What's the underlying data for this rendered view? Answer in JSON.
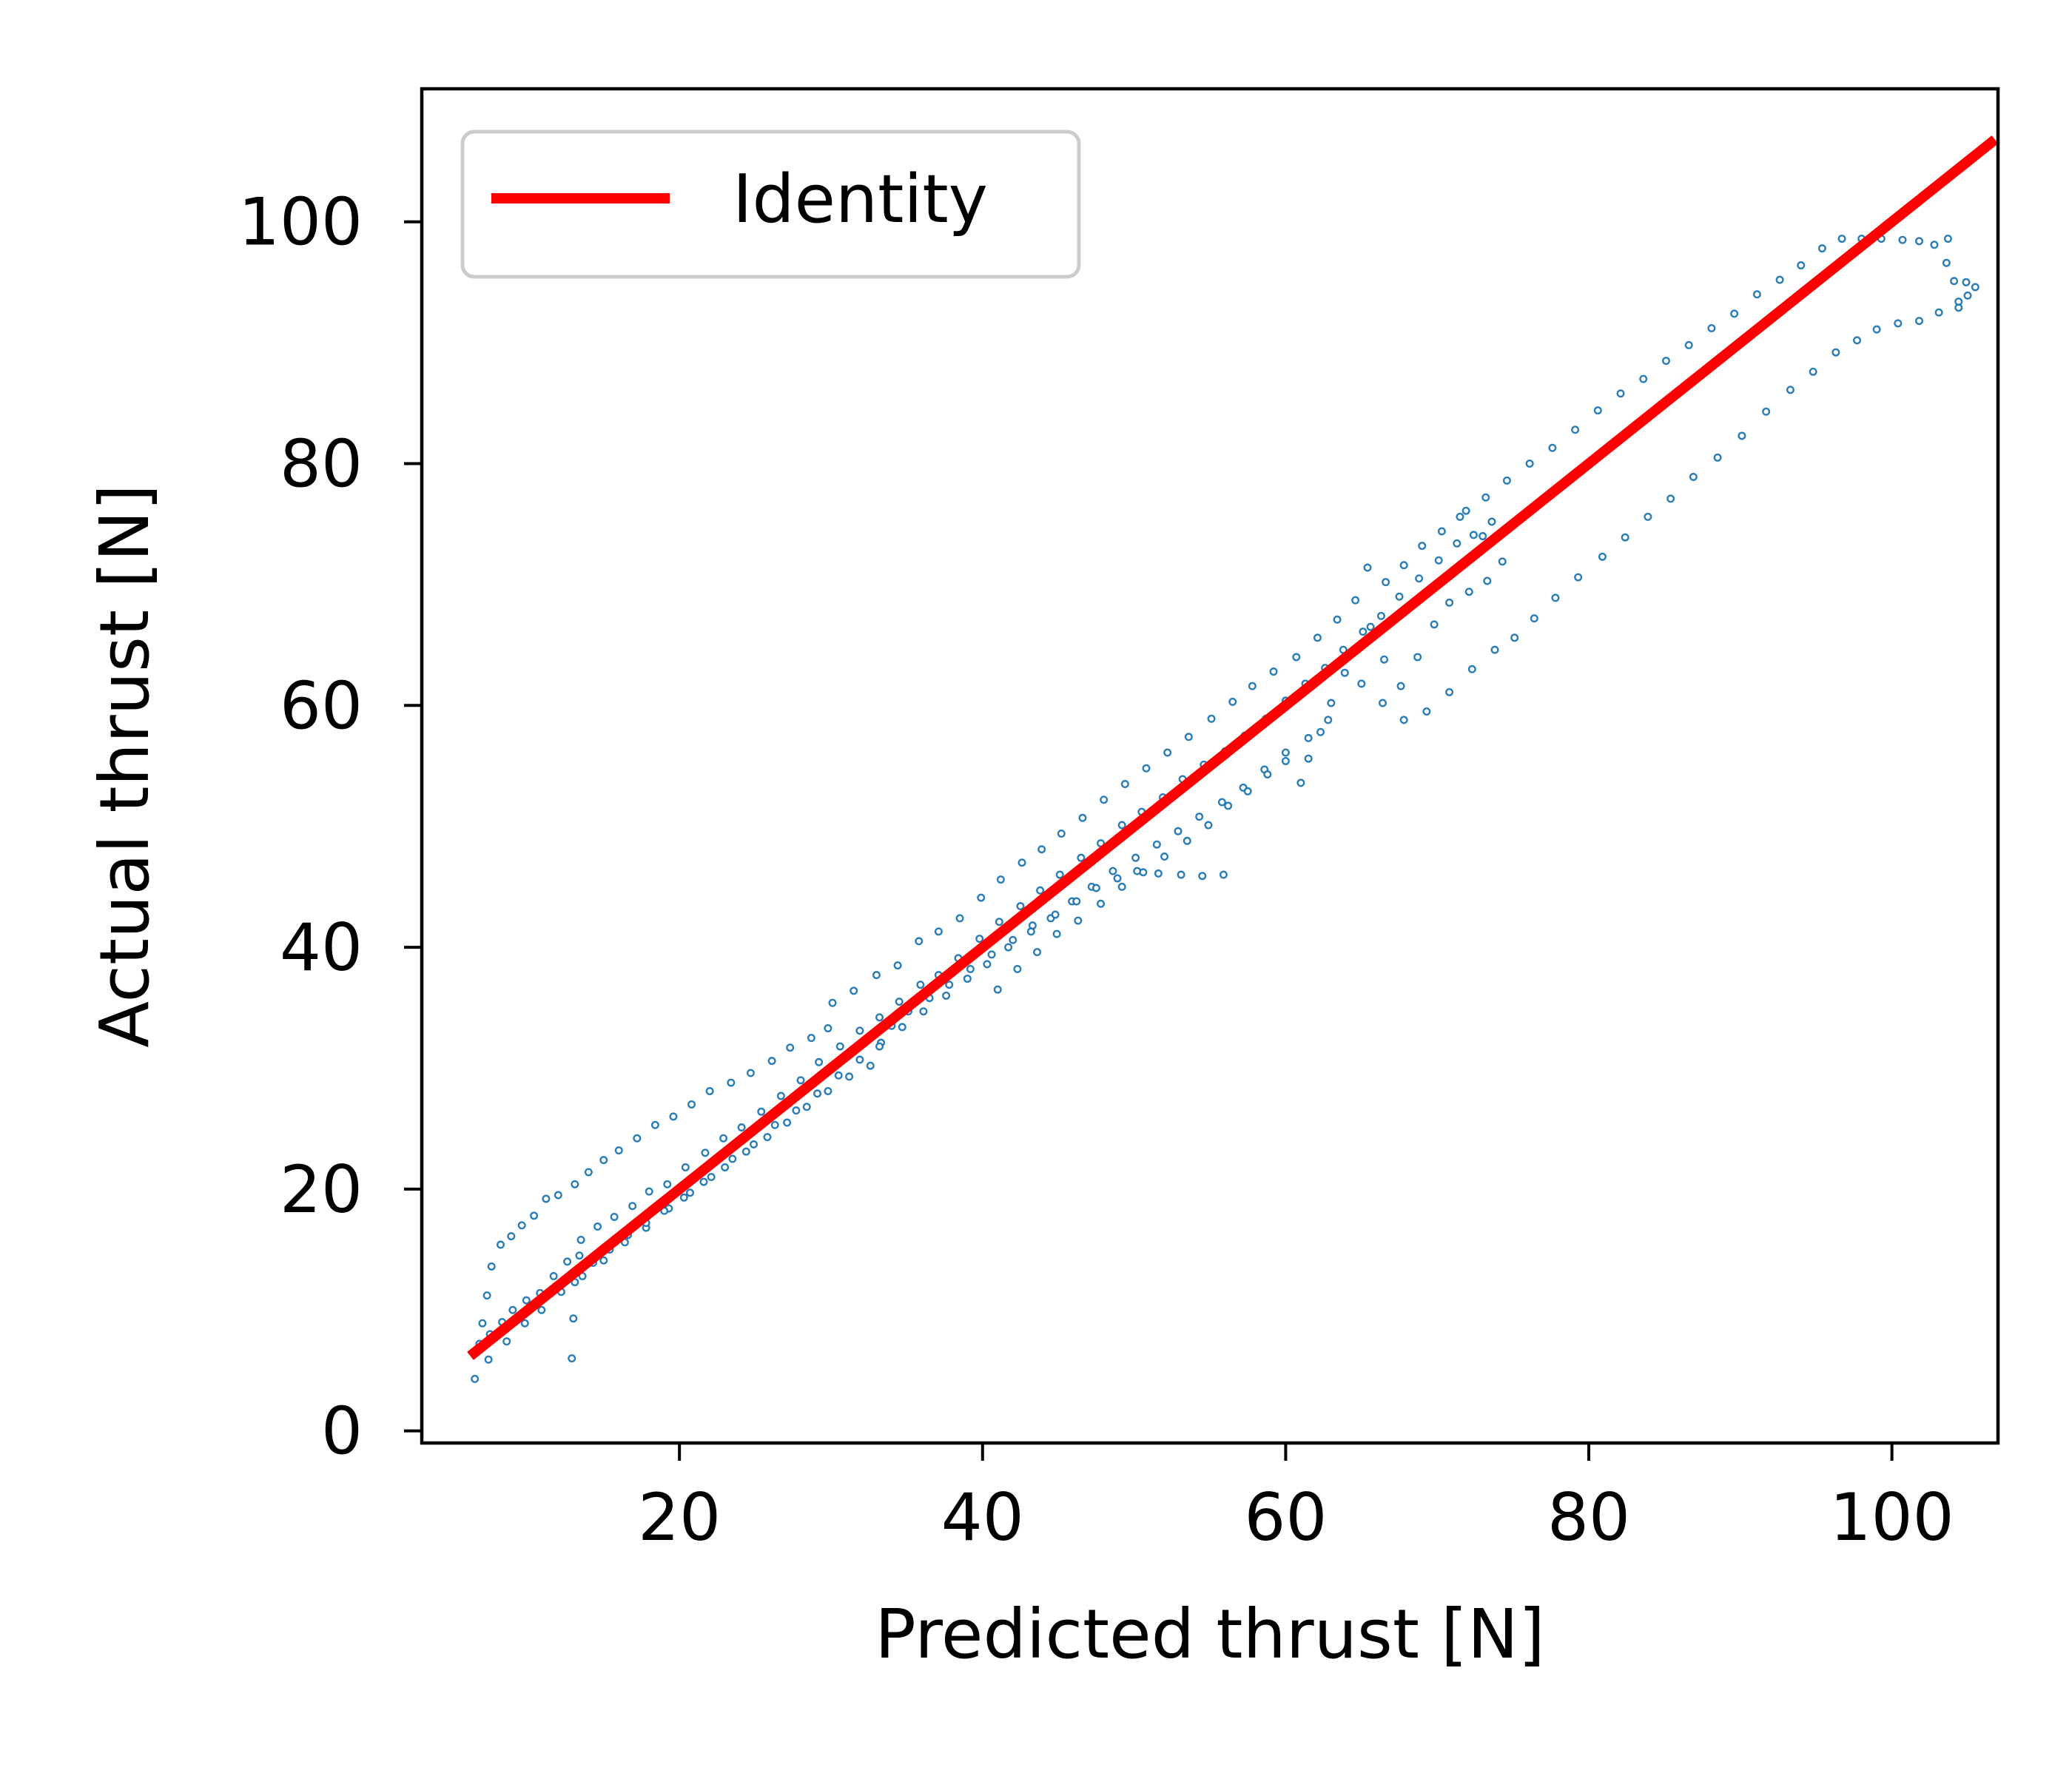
{
  "chart_data": {
    "type": "scatter",
    "title": "",
    "xlabel": "Predicted thrust [N]",
    "ylabel": "Actual thrust [N]",
    "xlim": [
      3,
      107
    ],
    "ylim": [
      -1,
      111
    ],
    "x_ticks": [
      20,
      40,
      60,
      80,
      100
    ],
    "y_ticks": [
      0,
      20,
      40,
      60,
      80,
      100
    ],
    "grid": false,
    "legend": {
      "position": "top-left",
      "entries": [
        {
          "label": "Identity",
          "color": "#ff0000",
          "style": "line"
        }
      ]
    },
    "series": [
      {
        "type": "scatter",
        "color": "#1f77b4",
        "marker": "small hollow circle",
        "points": [
          [
            6.5,
            4.3
          ],
          [
            6.7,
            6.8
          ],
          [
            7.0,
            8.9
          ],
          [
            7.3,
            11.2
          ],
          [
            7.6,
            13.6
          ],
          [
            8.2,
            15.4
          ],
          [
            8.9,
            16.1
          ],
          [
            9.6,
            17.0
          ],
          [
            10.4,
            17.8
          ],
          [
            11.2,
            19.2
          ],
          [
            12.0,
            19.5
          ],
          [
            13.1,
            20.4
          ],
          [
            14.0,
            21.4
          ],
          [
            15.0,
            22.4
          ],
          [
            16.0,
            23.2
          ],
          [
            17.2,
            24.2
          ],
          [
            18.4,
            25.3
          ],
          [
            19.6,
            26.0
          ],
          [
            20.8,
            27.0
          ],
          [
            22.0,
            28.1
          ],
          [
            23.4,
            28.8
          ],
          [
            24.7,
            29.6
          ],
          [
            26.1,
            30.6
          ],
          [
            27.3,
            31.7
          ],
          [
            28.7,
            32.5
          ],
          [
            29.8,
            33.3
          ],
          [
            6.8,
            7.2
          ],
          [
            7.5,
            8.0
          ],
          [
            8.3,
            9.0
          ],
          [
            9.0,
            10.0
          ],
          [
            9.9,
            10.8
          ],
          [
            10.8,
            11.4
          ],
          [
            11.7,
            12.8
          ],
          [
            12.6,
            14.0
          ],
          [
            13.5,
            15.8
          ],
          [
            14.6,
            16.9
          ],
          [
            15.7,
            17.7
          ],
          [
            16.9,
            18.6
          ],
          [
            18.0,
            19.8
          ],
          [
            19.2,
            20.4
          ],
          [
            20.4,
            21.8
          ],
          [
            21.7,
            23.0
          ],
          [
            22.9,
            24.2
          ],
          [
            24.1,
            25.1
          ],
          [
            25.4,
            26.4
          ],
          [
            26.7,
            27.7
          ],
          [
            28.0,
            29.0
          ],
          [
            29.2,
            30.5
          ],
          [
            30.6,
            31.8
          ],
          [
            31.9,
            33.1
          ],
          [
            33.2,
            34.2
          ],
          [
            34.5,
            35.5
          ],
          [
            35.9,
            36.9
          ],
          [
            37.1,
            37.7
          ],
          [
            38.4,
            39.1
          ],
          [
            39.8,
            40.7
          ],
          [
            41.1,
            42.1
          ],
          [
            42.5,
            43.4
          ],
          [
            43.8,
            44.7
          ],
          [
            45.1,
            46.0
          ],
          [
            46.5,
            47.4
          ],
          [
            47.8,
            48.6
          ],
          [
            49.2,
            50.1
          ],
          [
            50.5,
            51.2
          ],
          [
            51.9,
            52.4
          ],
          [
            53.2,
            53.9
          ],
          [
            54.6,
            55.1
          ],
          [
            56.0,
            56.2
          ],
          [
            57.3,
            57.5
          ],
          [
            58.7,
            58.9
          ],
          [
            60.0,
            60.4
          ],
          [
            61.3,
            61.8
          ],
          [
            62.6,
            63.1
          ],
          [
            63.8,
            64.6
          ],
          [
            65.1,
            66.1
          ],
          [
            66.3,
            67.4
          ],
          [
            67.5,
            69.0
          ],
          [
            68.8,
            70.5
          ],
          [
            70.1,
            72.0
          ],
          [
            71.3,
            73.4
          ],
          [
            72.4,
            74.1
          ],
          [
            73.6,
            75.2
          ],
          [
            7.4,
            5.9
          ],
          [
            8.6,
            7.4
          ],
          [
            9.8,
            8.9
          ],
          [
            10.9,
            10.0
          ],
          [
            12.2,
            11.5
          ],
          [
            13.6,
            12.8
          ],
          [
            15.0,
            14.1
          ],
          [
            16.4,
            15.6
          ],
          [
            17.8,
            16.8
          ],
          [
            19.3,
            18.4
          ],
          [
            20.7,
            19.7
          ],
          [
            22.1,
            21.0
          ],
          [
            23.5,
            22.5
          ],
          [
            24.9,
            23.7
          ],
          [
            26.3,
            25.3
          ],
          [
            27.7,
            26.5
          ],
          [
            29.1,
            27.9
          ],
          [
            30.5,
            29.4
          ],
          [
            31.9,
            30.7
          ],
          [
            33.3,
            32.1
          ],
          [
            34.7,
            33.4
          ],
          [
            36.1,
            34.7
          ],
          [
            37.6,
            36.0
          ],
          [
            39.0,
            37.4
          ],
          [
            40.3,
            38.6
          ],
          [
            41.7,
            40.0
          ],
          [
            43.2,
            41.3
          ],
          [
            44.5,
            42.4
          ],
          [
            45.9,
            43.8
          ],
          [
            47.2,
            45.0
          ],
          [
            48.6,
            46.3
          ],
          [
            50.1,
            47.4
          ],
          [
            51.5,
            48.5
          ],
          [
            52.9,
            49.6
          ],
          [
            54.3,
            50.8
          ],
          [
            55.8,
            52.0
          ],
          [
            57.2,
            53.2
          ],
          [
            58.6,
            54.7
          ],
          [
            60.0,
            56.1
          ],
          [
            61.5,
            57.3
          ],
          [
            62.8,
            58.8
          ],
          [
            12.9,
            6.0
          ],
          [
            13.0,
            9.3
          ],
          [
            13.1,
            12.3
          ],
          [
            13.4,
            14.5
          ],
          [
            14.3,
            13.9
          ],
          [
            15.4,
            15.0
          ],
          [
            16.6,
            16.2
          ],
          [
            17.8,
            17.2
          ],
          [
            19.0,
            18.2
          ],
          [
            20.3,
            19.3
          ],
          [
            21.6,
            20.6
          ],
          [
            23.0,
            21.8
          ],
          [
            24.4,
            23.1
          ],
          [
            25.8,
            24.3
          ],
          [
            27.1,
            25.5
          ],
          [
            28.4,
            26.8
          ],
          [
            29.8,
            28.1
          ],
          [
            31.2,
            29.3
          ],
          [
            32.6,
            30.2
          ],
          [
            33.2,
            31.8
          ],
          [
            34.0,
            33.5
          ],
          [
            35.1,
            34.7
          ],
          [
            36.5,
            35.8
          ],
          [
            37.8,
            36.9
          ],
          [
            39.2,
            38.2
          ],
          [
            40.6,
            39.4
          ],
          [
            42.0,
            40.6
          ],
          [
            43.3,
            41.8
          ],
          [
            44.8,
            42.7
          ],
          [
            46.2,
            43.8
          ],
          [
            47.5,
            44.9
          ],
          [
            48.9,
            45.7
          ],
          [
            50.2,
            46.3
          ],
          [
            51.6,
            46.1
          ],
          [
            53.1,
            46.0
          ],
          [
            54.5,
            45.9
          ],
          [
            55.9,
            46.0
          ],
          [
            30.1,
            35.4
          ],
          [
            31.5,
            36.4
          ],
          [
            33.0,
            37.7
          ],
          [
            34.4,
            38.5
          ],
          [
            35.8,
            40.5
          ],
          [
            37.1,
            41.3
          ],
          [
            38.5,
            42.4
          ],
          [
            39.9,
            44.1
          ],
          [
            41.2,
            45.6
          ],
          [
            42.6,
            47.0
          ],
          [
            43.9,
            48.1
          ],
          [
            45.2,
            49.4
          ],
          [
            46.6,
            50.7
          ],
          [
            48.0,
            52.2
          ],
          [
            49.4,
            53.5
          ],
          [
            50.8,
            54.8
          ],
          [
            52.2,
            56.1
          ],
          [
            53.6,
            57.4
          ],
          [
            55.1,
            58.9
          ],
          [
            56.5,
            60.3
          ],
          [
            57.8,
            61.6
          ],
          [
            59.2,
            62.8
          ],
          [
            60.7,
            64.0
          ],
          [
            62.1,
            65.6
          ],
          [
            63.4,
            67.1
          ],
          [
            64.6,
            68.7
          ],
          [
            65.4,
            71.4
          ],
          [
            66.6,
            70.2
          ],
          [
            67.8,
            71.6
          ],
          [
            69.0,
            73.2
          ],
          [
            70.3,
            74.4
          ],
          [
            71.5,
            75.6
          ],
          [
            41.0,
            36.5
          ],
          [
            42.3,
            38.2
          ],
          [
            43.6,
            39.6
          ],
          [
            44.9,
            41.1
          ],
          [
            46.3,
            42.2
          ],
          [
            47.8,
            43.6
          ],
          [
            49.2,
            45.0
          ],
          [
            50.6,
            46.2
          ],
          [
            52.0,
            47.5
          ],
          [
            53.5,
            48.8
          ],
          [
            54.9,
            50.1
          ],
          [
            56.2,
            51.7
          ],
          [
            57.5,
            52.9
          ],
          [
            58.8,
            54.3
          ],
          [
            60.0,
            55.4
          ],
          [
            61.0,
            53.6
          ],
          [
            61.5,
            55.6
          ],
          [
            62.3,
            57.8
          ],
          [
            63.0,
            60.2
          ],
          [
            63.9,
            62.7
          ],
          [
            64.8,
            64.8
          ],
          [
            65.6,
            66.5
          ],
          [
            66.5,
            63.8
          ],
          [
            67.6,
            61.6
          ],
          [
            68.7,
            64.0
          ],
          [
            69.8,
            66.7
          ],
          [
            70.8,
            68.5
          ],
          [
            72.1,
            69.4
          ],
          [
            73.3,
            70.3
          ],
          [
            74.3,
            71.9
          ],
          [
            73.0,
            74.0
          ],
          [
            65.0,
            61.8
          ],
          [
            66.4,
            60.2
          ],
          [
            67.8,
            58.8
          ],
          [
            69.3,
            59.5
          ],
          [
            70.8,
            61.1
          ],
          [
            72.3,
            63.0
          ],
          [
            73.8,
            64.6
          ],
          [
            75.1,
            65.6
          ],
          [
            76.4,
            67.2
          ],
          [
            77.8,
            68.9
          ],
          [
            79.3,
            70.6
          ],
          [
            80.9,
            72.3
          ],
          [
            82.4,
            73.9
          ],
          [
            83.9,
            75.6
          ],
          [
            85.4,
            77.1
          ],
          [
            86.9,
            78.9
          ],
          [
            88.5,
            80.5
          ],
          [
            90.1,
            82.3
          ],
          [
            91.7,
            84.3
          ],
          [
            93.3,
            86.1
          ],
          [
            94.8,
            87.6
          ],
          [
            96.3,
            89.2
          ],
          [
            97.7,
            90.2
          ],
          [
            99.0,
            91.1
          ],
          [
            100.4,
            91.6
          ],
          [
            101.8,
            91.8
          ],
          [
            103.1,
            92.5
          ],
          [
            104.4,
            92.9
          ],
          [
            71.9,
            76.1
          ],
          [
            73.2,
            77.2
          ],
          [
            74.6,
            78.6
          ],
          [
            76.1,
            80.0
          ],
          [
            77.6,
            81.3
          ],
          [
            79.1,
            82.8
          ],
          [
            80.6,
            84.4
          ],
          [
            82.1,
            85.8
          ],
          [
            83.6,
            87.0
          ],
          [
            85.1,
            88.5
          ],
          [
            86.6,
            89.8
          ],
          [
            88.1,
            91.2
          ],
          [
            89.6,
            92.4
          ],
          [
            91.1,
            94.0
          ],
          [
            92.6,
            95.2
          ],
          [
            94.0,
            96.4
          ],
          [
            95.4,
            97.8
          ],
          [
            96.7,
            98.6
          ],
          [
            98.0,
            98.6
          ],
          [
            99.3,
            98.6
          ],
          [
            100.7,
            98.5
          ],
          [
            101.8,
            98.4
          ],
          [
            102.8,
            98.1
          ],
          [
            103.7,
            98.6
          ],
          [
            103.6,
            96.6
          ],
          [
            104.1,
            95.1
          ],
          [
            104.9,
            95.0
          ],
          [
            105.5,
            94.6
          ],
          [
            105.0,
            93.9
          ],
          [
            104.4,
            93.4
          ]
        ]
      },
      {
        "type": "line",
        "name": "Identity",
        "color": "#ff0000",
        "x": [
          6.2,
          106.8
        ],
        "y": [
          6.2,
          106.8
        ]
      }
    ]
  }
}
